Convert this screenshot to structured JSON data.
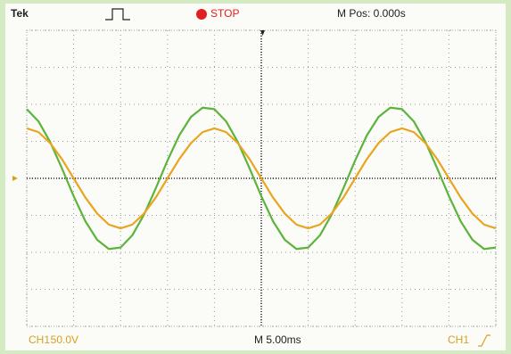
{
  "header": {
    "brand": "Tek",
    "status": "STOP",
    "position": "M Pos: 0.000s"
  },
  "footer": {
    "channel": "CH1",
    "scale": "50.0V",
    "timebase": "M 5.00ms",
    "trigger_channel": "CH1"
  },
  "chart_data": {
    "type": "line",
    "x": [
      -5,
      -4.75,
      -4.5,
      -4.25,
      -4,
      -3.75,
      -3.5,
      -3.25,
      -3,
      -2.75,
      -2.5,
      -2.25,
      -2,
      -1.75,
      -1.5,
      -1.25,
      -1,
      -0.75,
      -0.5,
      -0.25,
      0,
      0.25,
      0.5,
      0.75,
      1,
      1.25,
      1.5,
      1.75,
      2,
      2.25,
      2.5,
      2.75,
      3,
      3.25,
      3.5,
      3.75,
      4,
      4.25,
      4.5,
      4.75,
      5
    ],
    "series": [
      {
        "color": "#5cb43c",
        "values": [
          1.87,
          1.54,
          0.98,
          0.27,
          -0.48,
          -1.16,
          -1.66,
          -1.91,
          -1.87,
          -1.54,
          -0.98,
          -0.27,
          0.48,
          1.16,
          1.66,
          1.91,
          1.87,
          1.54,
          0.98,
          0.27,
          -0.48,
          -1.16,
          -1.66,
          -1.91,
          -1.87,
          -1.54,
          -0.98,
          -0.27,
          0.48,
          1.16,
          1.66,
          1.91,
          1.87,
          1.54,
          0.98,
          0.27,
          -0.48,
          -1.16,
          -1.66,
          -1.91,
          -1.87
        ]
      },
      {
        "color": "#e9a520",
        "values": [
          1.35,
          1.25,
          0.95,
          0.52,
          0,
          -0.52,
          -0.95,
          -1.25,
          -1.35,
          -1.25,
          -0.95,
          -0.52,
          0,
          0.52,
          0.95,
          1.25,
          1.35,
          1.25,
          0.95,
          0.52,
          0,
          -0.52,
          -0.95,
          -1.25,
          -1.35,
          -1.25,
          -0.95,
          -0.52,
          0,
          0.52,
          0.95,
          1.25,
          1.35,
          1.25,
          0.95,
          0.52,
          0,
          -0.52,
          -0.95,
          -1.25,
          -1.35
        ]
      }
    ],
    "xlim": [
      -5,
      5
    ],
    "ylim": [
      -4,
      4
    ],
    "xticks": [
      -5,
      -4,
      -3,
      -2,
      -1,
      0,
      1,
      2,
      3,
      4,
      5
    ],
    "yticks": [
      -4,
      -3,
      -2,
      -1,
      0,
      1,
      2,
      3,
      4
    ],
    "grid": true
  }
}
